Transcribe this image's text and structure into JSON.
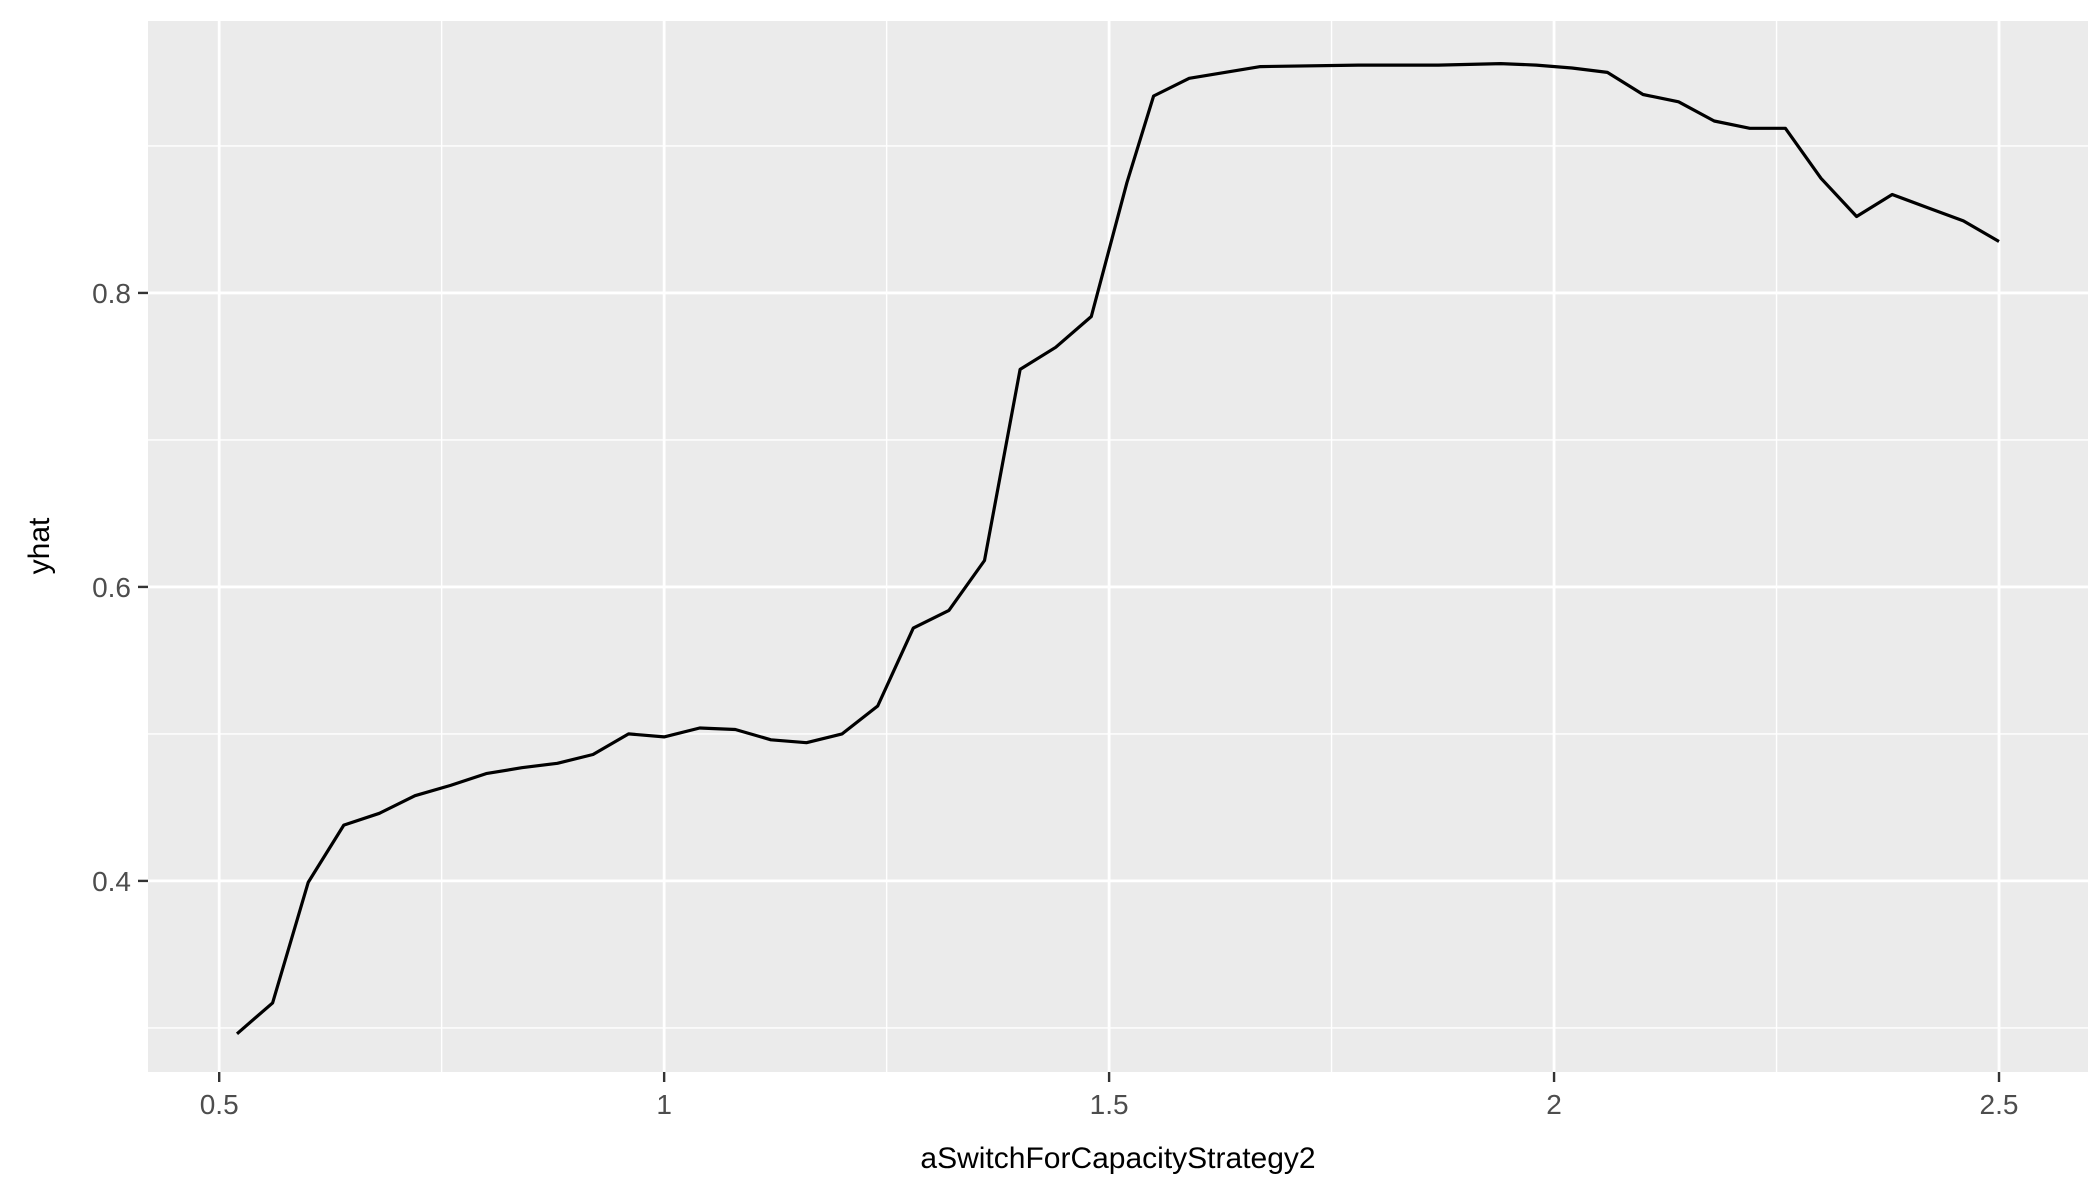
{
  "chart_data": {
    "type": "line",
    "title": "",
    "xlabel": "aSwitchForCapacityStrategy2",
    "ylabel": "yhat",
    "xlim": [
      0.42,
      2.6
    ],
    "ylim": [
      0.27,
      0.985
    ],
    "x_ticks": [
      0.5,
      1,
      1.5,
      2,
      2.5
    ],
    "x_tick_labels": [
      "0.5",
      "1",
      "1.5",
      "2",
      "2.5"
    ],
    "y_ticks": [
      0.4,
      0.6,
      0.8
    ],
    "y_tick_labels": [
      "0.4",
      "0.6",
      "0.8"
    ],
    "grid": true,
    "legend": "none",
    "series": [
      {
        "color": "#000000",
        "x": [
          0.52,
          0.56,
          0.6,
          0.64,
          0.68,
          0.72,
          0.76,
          0.8,
          0.84,
          0.88,
          0.92,
          0.96,
          1.0,
          1.04,
          1.08,
          1.12,
          1.16,
          1.2,
          1.24,
          1.28,
          1.32,
          1.36,
          1.4,
          1.44,
          1.48,
          1.52,
          1.55,
          1.59,
          1.63,
          1.67,
          1.78,
          1.87,
          1.94,
          1.98,
          2.02,
          2.06,
          2.1,
          2.14,
          2.18,
          2.22,
          2.26,
          2.3,
          2.34,
          2.38,
          2.42,
          2.46,
          2.5
        ],
        "y": [
          0.296,
          0.317,
          0.399,
          0.438,
          0.446,
          0.458,
          0.465,
          0.473,
          0.477,
          0.48,
          0.486,
          0.5,
          0.498,
          0.504,
          0.503,
          0.496,
          0.494,
          0.5,
          0.519,
          0.572,
          0.584,
          0.618,
          0.748,
          0.763,
          0.784,
          0.875,
          0.934,
          0.946,
          0.95,
          0.954,
          0.955,
          0.955,
          0.956,
          0.955,
          0.953,
          0.95,
          0.935,
          0.93,
          0.917,
          0.912,
          0.912,
          0.878,
          0.852,
          0.867,
          0.858,
          0.849,
          0.835
        ]
      }
    ]
  }
}
